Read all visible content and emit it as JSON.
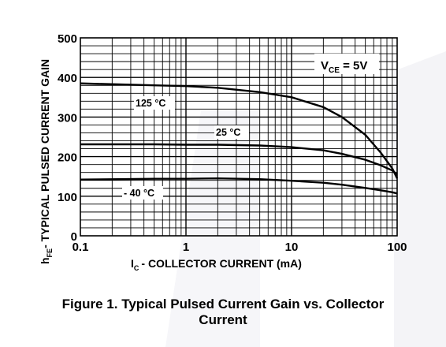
{
  "caption": {
    "line1": "Figure 1. Typical Pulsed Current Gain vs. Collector",
    "line2": "Current"
  },
  "chart_data": {
    "type": "line",
    "title": "",
    "ylabel": {
      "pre": "h",
      "sub": "FE",
      "post": "- TYPICAL PULSED CURRENT GAIN"
    },
    "xlabel": {
      "pre": "I",
      "sub": "C",
      "post": "- COLLECTOR CURRENT  (mA)"
    },
    "xscale": "log",
    "xlim": [
      0.1,
      100
    ],
    "ylim": [
      0,
      500
    ],
    "xticks": [
      "0.1",
      "1",
      "10",
      "100"
    ],
    "yticks": [
      "0",
      "100",
      "200",
      "300",
      "400",
      "500"
    ],
    "grid": true,
    "annotation": {
      "pre": "V",
      "sub": "CE",
      "post": " = 5V"
    },
    "series": [
      {
        "name": "125 °C",
        "x": [
          0.1,
          0.5,
          1,
          2,
          5,
          10,
          20,
          30,
          50,
          70,
          90,
          100
        ],
        "y": [
          385,
          380,
          378,
          374,
          363,
          350,
          325,
          300,
          255,
          210,
          170,
          145
        ]
      },
      {
        "name": "25 °C",
        "x": [
          0.1,
          0.5,
          1,
          2,
          5,
          10,
          20,
          30,
          50,
          70,
          90,
          100
        ],
        "y": [
          231,
          231,
          230,
          230,
          228,
          224,
          216,
          207,
          192,
          178,
          165,
          155
        ]
      },
      {
        "name": "- 40 °C",
        "x": [
          0.1,
          0.5,
          1,
          2,
          5,
          10,
          20,
          30,
          50,
          70,
          90,
          100
        ],
        "y": [
          142,
          144,
          144,
          145,
          143,
          139,
          134,
          129,
          121,
          115,
          110,
          107
        ]
      }
    ]
  },
  "colors": {
    "line": "#000000",
    "grid": "#000000",
    "background": "#ffffff",
    "watermark": "#f5f5f7"
  }
}
